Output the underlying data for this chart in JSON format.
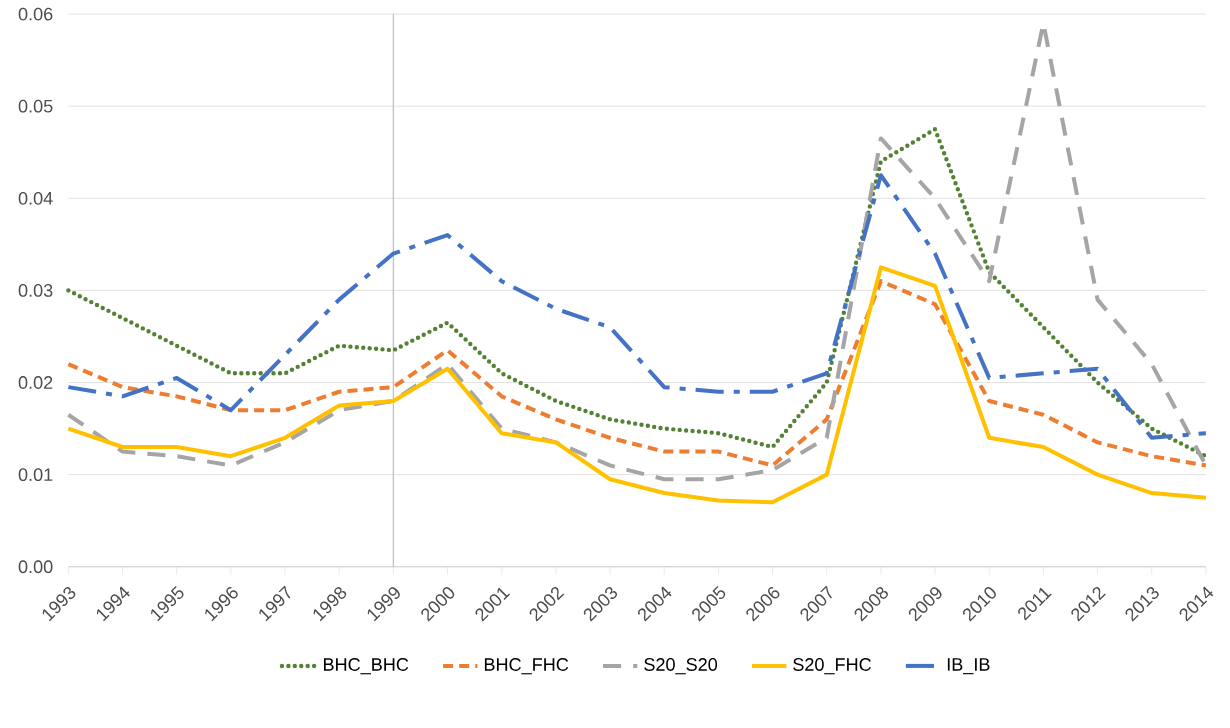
{
  "chart_data": {
    "type": "line",
    "x": [
      1993,
      1994,
      1995,
      1996,
      1997,
      1998,
      1999,
      2000,
      2001,
      2002,
      2003,
      2004,
      2005,
      2006,
      2007,
      2008,
      2009,
      2010,
      2011,
      2012,
      2013,
      2014
    ],
    "xlim": [
      1993,
      2014
    ],
    "xticks": [
      1993,
      1994,
      1995,
      1996,
      1997,
      1998,
      1999,
      2000,
      2001,
      2002,
      2003,
      2004,
      2005,
      2006,
      2007,
      2008,
      2009,
      2010,
      2011,
      2012,
      2013,
      2014
    ],
    "ylim": [
      0,
      0.06
    ],
    "yticks": [
      {
        "value": 0,
        "label": "0.00"
      },
      {
        "value": 0.01,
        "label": "0.01"
      },
      {
        "value": 0.02,
        "label": "0.02"
      },
      {
        "value": 0.03,
        "label": "0.03"
      },
      {
        "value": 0.04,
        "label": "0.04"
      },
      {
        "value": 0.05,
        "label": "0.05"
      },
      {
        "value": 0.06,
        "label": "0.06"
      }
    ],
    "grid": "y",
    "legend": "bottom",
    "marker": "none",
    "ref_lines": [
      {
        "axis": "x",
        "value": 1999,
        "color": "#bfbfbf"
      }
    ],
    "series": [
      {
        "name": "BHC_BHC",
        "color": "#548235",
        "line_style": "dotted",
        "values": [
          0.03,
          0.027,
          0.024,
          0.021,
          0.021,
          0.024,
          0.0235,
          0.0265,
          0.021,
          0.018,
          0.016,
          0.015,
          0.0145,
          0.013,
          0.02,
          0.044,
          0.0475,
          0.032,
          0.026,
          0.02,
          0.015,
          0.012
        ]
      },
      {
        "name": "BHC_FHC",
        "color": "#ed7d31",
        "line_style": "dashed",
        "values": [
          0.022,
          0.0195,
          0.0185,
          0.017,
          0.017,
          0.019,
          0.0195,
          0.0235,
          0.0185,
          0.016,
          0.014,
          0.0125,
          0.0125,
          0.011,
          0.016,
          0.031,
          0.0285,
          0.018,
          0.0165,
          0.0135,
          0.012,
          0.011
        ]
      },
      {
        "name": "S20_S20",
        "color": "#a5a5a5",
        "line_style": "longdash",
        "values": [
          0.0165,
          0.0125,
          0.012,
          0.011,
          0.0135,
          0.017,
          0.018,
          0.022,
          0.015,
          0.0135,
          0.011,
          0.0095,
          0.0095,
          0.0105,
          0.014,
          0.0465,
          0.04,
          0.031,
          0.059,
          0.029,
          0.022,
          0.011
        ]
      },
      {
        "name": "S20_FHC",
        "color": "#ffc000",
        "line_style": "solid",
        "values": [
          0.015,
          0.013,
          0.013,
          0.012,
          0.014,
          0.0175,
          0.018,
          0.0215,
          0.0145,
          0.0135,
          0.0095,
          0.008,
          0.0072,
          0.007,
          0.01,
          0.0325,
          0.0305,
          0.014,
          0.013,
          0.01,
          0.008,
          0.0075
        ]
      },
      {
        "name": "IB_IB",
        "color": "#4472c4",
        "line_style": "dashdot",
        "values": [
          0.0195,
          0.0185,
          0.0205,
          0.017,
          0.023,
          0.029,
          0.034,
          0.036,
          0.031,
          0.028,
          0.026,
          0.0195,
          0.019,
          0.019,
          0.021,
          0.0425,
          0.034,
          0.0205,
          0.021,
          0.0215,
          0.014,
          0.0145
        ]
      }
    ]
  }
}
